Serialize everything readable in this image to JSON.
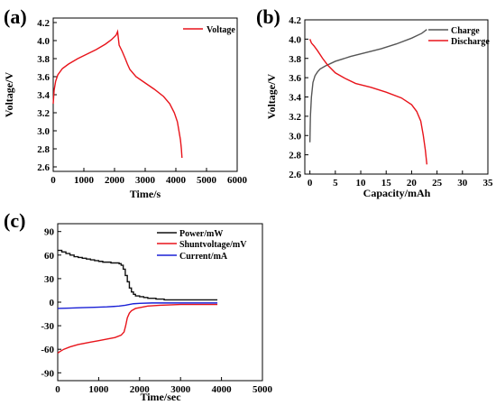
{
  "chart_data": [
    {
      "panel": "(a)",
      "type": "line",
      "xlabel": "Time/s",
      "ylabel": "Voltage/V",
      "xlim": [
        0,
        6000
      ],
      "ylim": [
        2.55,
        4.25
      ],
      "xticks": [
        0,
        1000,
        2000,
        3000,
        4000,
        5000,
        6000
      ],
      "yticks": [
        2.6,
        2.8,
        3.0,
        3.2,
        3.4,
        3.6,
        3.8,
        4.0,
        4.2
      ],
      "legend_position": "top-right",
      "series": [
        {
          "name": "Voltage",
          "color": "#e8141b",
          "x": [
            0,
            30,
            80,
            150,
            300,
            500,
            800,
            1100,
            1400,
            1700,
            1900,
            2050,
            2100,
            2150,
            2250,
            2350,
            2420,
            2500,
            2700,
            3000,
            3300,
            3600,
            3800,
            3950,
            4050,
            4100,
            4150,
            4180,
            4200
          ],
          "y": [
            3.3,
            3.45,
            3.55,
            3.62,
            3.69,
            3.74,
            3.8,
            3.85,
            3.9,
            3.96,
            4.01,
            4.06,
            4.1,
            3.95,
            3.88,
            3.8,
            3.74,
            3.68,
            3.6,
            3.53,
            3.46,
            3.38,
            3.3,
            3.2,
            3.1,
            3.0,
            2.9,
            2.8,
            2.7
          ]
        }
      ]
    },
    {
      "panel": "(b)",
      "type": "line",
      "xlabel": "Capacity/mAh",
      "ylabel": "Voltage/V",
      "xlim": [
        -1,
        35
      ],
      "ylim": [
        2.6,
        4.2
      ],
      "xticks": [
        0,
        5,
        10,
        15,
        20,
        25,
        30,
        35
      ],
      "yticks": [
        2.6,
        2.8,
        3.0,
        3.2,
        3.4,
        3.6,
        3.8,
        4.0,
        4.2
      ],
      "legend_position": "top-right",
      "series": [
        {
          "name": "Charge",
          "color": "#555555",
          "x": [
            0,
            0.1,
            0.3,
            0.6,
            1,
            1.5,
            2,
            3,
            5,
            8,
            11,
            14,
            17,
            20,
            22,
            23
          ],
          "y": [
            2.93,
            3.2,
            3.4,
            3.55,
            3.62,
            3.66,
            3.69,
            3.72,
            3.77,
            3.82,
            3.86,
            3.9,
            3.95,
            4.01,
            4.06,
            4.1
          ]
        },
        {
          "name": "Discharge",
          "color": "#e8141b",
          "x": [
            0,
            0.3,
            0.8,
            1.5,
            2.5,
            3.5,
            5,
            7,
            9,
            12,
            15,
            18,
            20,
            21,
            21.8,
            22.3,
            22.7,
            23
          ],
          "y": [
            4.0,
            3.96,
            3.93,
            3.88,
            3.8,
            3.73,
            3.65,
            3.59,
            3.54,
            3.5,
            3.45,
            3.39,
            3.32,
            3.25,
            3.15,
            3.0,
            2.85,
            2.7
          ]
        }
      ]
    },
    {
      "panel": "(c)",
      "type": "line",
      "xlabel": "Time/sec",
      "ylabel": "",
      "xlim": [
        0,
        5000
      ],
      "ylim": [
        -100,
        100
      ],
      "xticks": [
        0,
        1000,
        2000,
        3000,
        4000,
        5000
      ],
      "yticks": [
        -90,
        -60,
        -30,
        0,
        30,
        60,
        90
      ],
      "legend_position": "top-right",
      "series": [
        {
          "name": "Power/mW",
          "color": "#111111",
          "step": true,
          "x": [
            0,
            100,
            200,
            300,
            400,
            500,
            600,
            700,
            800,
            900,
            1000,
            1100,
            1200,
            1300,
            1400,
            1500,
            1550,
            1600,
            1650,
            1700,
            1750,
            1800,
            1850,
            1900,
            2000,
            2100,
            2200,
            2400,
            2600,
            3000,
            3500,
            3900
          ],
          "y": [
            66,
            64,
            62,
            60,
            58,
            57,
            56,
            55,
            54,
            53,
            52,
            51,
            51,
            50,
            50,
            49,
            47,
            42,
            34,
            26,
            18,
            13,
            10,
            8,
            7,
            6,
            5,
            4,
            3,
            3,
            3,
            3
          ]
        },
        {
          "name": "Shuntvoltage/mV",
          "color": "#e8141b",
          "x": [
            0,
            50,
            150,
            300,
            500,
            800,
            1000,
            1200,
            1400,
            1550,
            1620,
            1660,
            1700,
            1750,
            1800,
            1900,
            2000,
            2200,
            2500,
            3000,
            3500,
            3900
          ],
          "y": [
            -65,
            -63,
            -60,
            -57,
            -54,
            -51,
            -49,
            -47,
            -45,
            -42,
            -38,
            -30,
            -20,
            -14,
            -11,
            -8,
            -7,
            -5,
            -4,
            -3,
            -3,
            -3
          ]
        },
        {
          "name": "Current/mA",
          "color": "#1a20d6",
          "x": [
            0,
            300,
            600,
            900,
            1200,
            1500,
            1650,
            1750,
            1850,
            2000,
            2300,
            2700,
            3200,
            3900
          ],
          "y": [
            -8,
            -7.5,
            -7,
            -6.5,
            -6,
            -5,
            -4,
            -3,
            -2,
            -1.5,
            -1,
            -1,
            -1,
            -1
          ]
        }
      ]
    }
  ]
}
